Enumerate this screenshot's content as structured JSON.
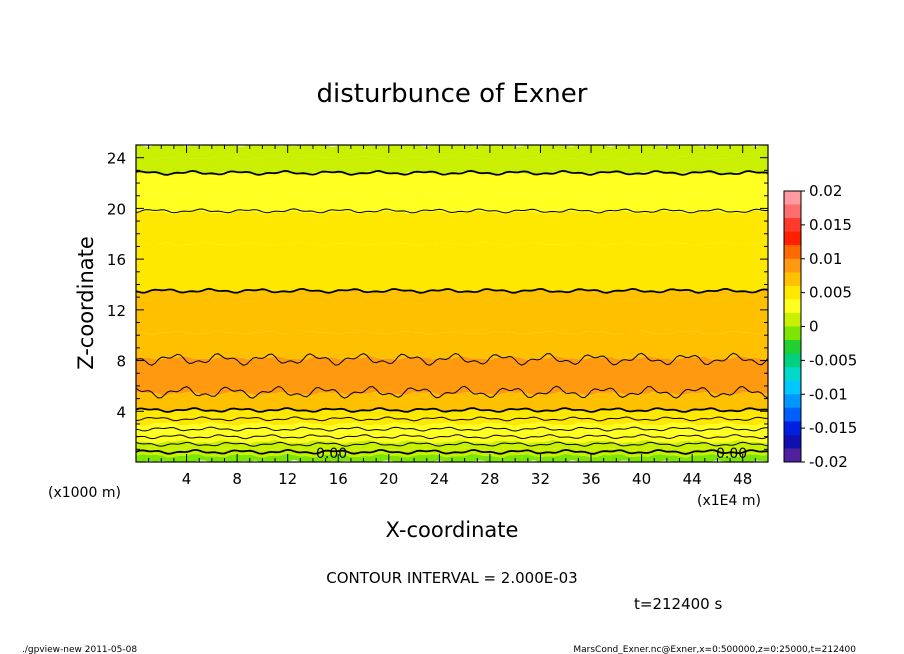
{
  "chart_data": {
    "type": "heatmap",
    "title": "disturbunce of Exner",
    "xlabel": "X-coordinate",
    "ylabel": "Z-coordinate",
    "x_unit": "(x1E4 m)",
    "y_unit": "(x1000 m)",
    "xlim": [
      0,
      50
    ],
    "ylim": [
      0,
      25
    ],
    "x_ticks": [
      "4",
      "8",
      "12",
      "16",
      "20",
      "24",
      "28",
      "32",
      "36",
      "40",
      "44",
      "48"
    ],
    "y_ticks": [
      "4",
      "8",
      "12",
      "16",
      "20",
      "24"
    ],
    "contour_label": "0.00",
    "colorbar": {
      "labels": [
        "0.02",
        "0.015",
        "0.01",
        "0.005",
        "0",
        "-0.005",
        "-0.01",
        "-0.015",
        "-0.02"
      ],
      "levels": [
        0.02,
        0.018,
        0.016,
        0.014,
        0.012,
        0.01,
        0.008,
        0.006,
        0.004,
        0.002,
        0.0,
        -0.002,
        -0.004,
        -0.006,
        -0.008,
        -0.01,
        -0.012,
        -0.014,
        -0.016,
        -0.018,
        -0.02
      ],
      "colors": [
        "#ff9aa0",
        "#ff6e6e",
        "#ff3a2a",
        "#ff2000",
        "#ff6a00",
        "#ff9a10",
        "#ffc000",
        "#ffe800",
        "#ffff20",
        "#c8f000",
        "#7ce600",
        "#20d030",
        "#00d080",
        "#00d8c8",
        "#00c8ff",
        "#0098ff",
        "#0060ff",
        "#0020e0",
        "#1010b0",
        "#5020a0"
      ]
    },
    "bands_height_km": [
      {
        "z": [
          0.0,
          0.5
        ],
        "value": 0.0
      },
      {
        "z": [
          0.5,
          1.0
        ],
        "value": 0.001
      },
      {
        "z": [
          1.0,
          1.6
        ],
        "value": 0.002
      },
      {
        "z": [
          1.6,
          2.3
        ],
        "value": 0.003
      },
      {
        "z": [
          2.3,
          3.0
        ],
        "value": 0.004
      },
      {
        "z": [
          3.0,
          3.6
        ],
        "value": 0.005
      },
      {
        "z": [
          3.6,
          4.1
        ],
        "value": 0.006
      },
      {
        "z": [
          4.1,
          5.4
        ],
        "value": 0.008
      },
      {
        "z": [
          5.4,
          8.2
        ],
        "value": 0.0095
      },
      {
        "z": [
          8.2,
          10.2
        ],
        "value": 0.008
      },
      {
        "z": [
          10.2,
          13.5
        ],
        "value": 0.007
      },
      {
        "z": [
          13.5,
          17.2
        ],
        "value": 0.006
      },
      {
        "z": [
          17.2,
          19.7
        ],
        "value": 0.005
      },
      {
        "z": [
          19.7,
          21.2
        ],
        "value": 0.004
      },
      {
        "z": [
          21.2,
          22.8
        ],
        "value": 0.003
      },
      {
        "z": [
          22.8,
          24.0
        ],
        "value": 0.002
      },
      {
        "z": [
          24.0,
          25.0
        ],
        "value": 0.001
      }
    ],
    "contour_lines_km": [
      0.8,
      1.4,
      2.0,
      2.6,
      3.4,
      4.1,
      5.5,
      8.1,
      13.5,
      19.8,
      22.8
    ]
  },
  "annotations": {
    "contour_interval": "CONTOUR INTERVAL = 2.000E-03",
    "time": "t=212400 s",
    "footer_left": "./gpview-new   2011-05-08",
    "footer_right": "MarsCond_Exner.nc@Exner,x=0:500000,z=0:25000,t=212400"
  }
}
